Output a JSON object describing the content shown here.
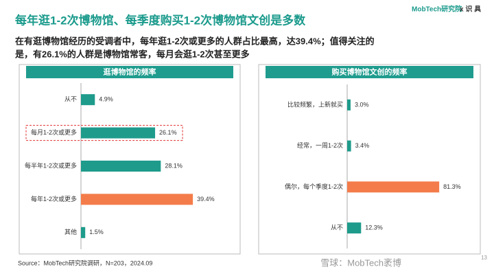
{
  "header": {
    "title": "每年逛1-2次博物馆、每季度购买1-2次博物馆文创是多数",
    "logo": "MobTech研究院",
    "partner": "x 识 具",
    "description": [
      "在有逛博物馆经历的受调者中，每年逛1-2次或更多的人群占比最高，达39.4%；值得关注的",
      "是，有26.1%的人群是博物馆常客，每月会逛1-2次甚至更多"
    ]
  },
  "chart_data": [
    {
      "type": "hbar",
      "title": "逛博物馆的频率",
      "categories": [
        "从不",
        "每月1-2次或更多",
        "每半年1-2次或更多",
        "每年1-2次或更多",
        "其他"
      ],
      "values": [
        4.9,
        26.1,
        28.1,
        39.4,
        1.5
      ],
      "value_labels": [
        "4.9%",
        "26.1%",
        "28.1%",
        "39.4%",
        "1.5%"
      ],
      "colors": [
        "#1e9b8b",
        "#1e9b8b",
        "#1e9b8b",
        "#f47c4a",
        "#1e9b8b"
      ],
      "highlight": 1
    },
    {
      "type": "hbar",
      "title": "购买博物馆文创的频率",
      "categories": [
        "比较频繁，上新就买",
        "经常，一周1-2次",
        "偶尔，每个季度1-2次",
        "从不"
      ],
      "values": [
        3.0,
        3.4,
        81.3,
        12.3
      ],
      "value_labels": [
        "3.0%",
        "3.4%",
        "81.3%",
        "12.3%"
      ],
      "colors": [
        "#1e9b8b",
        "#1e9b8b",
        "#f47c4a",
        "#1e9b8b"
      ]
    }
  ],
  "footer": {
    "source": "Source：MobTech研究院调研，N=203，2024.09",
    "page": "13",
    "watermark": "雪球：MobTech袤博"
  }
}
